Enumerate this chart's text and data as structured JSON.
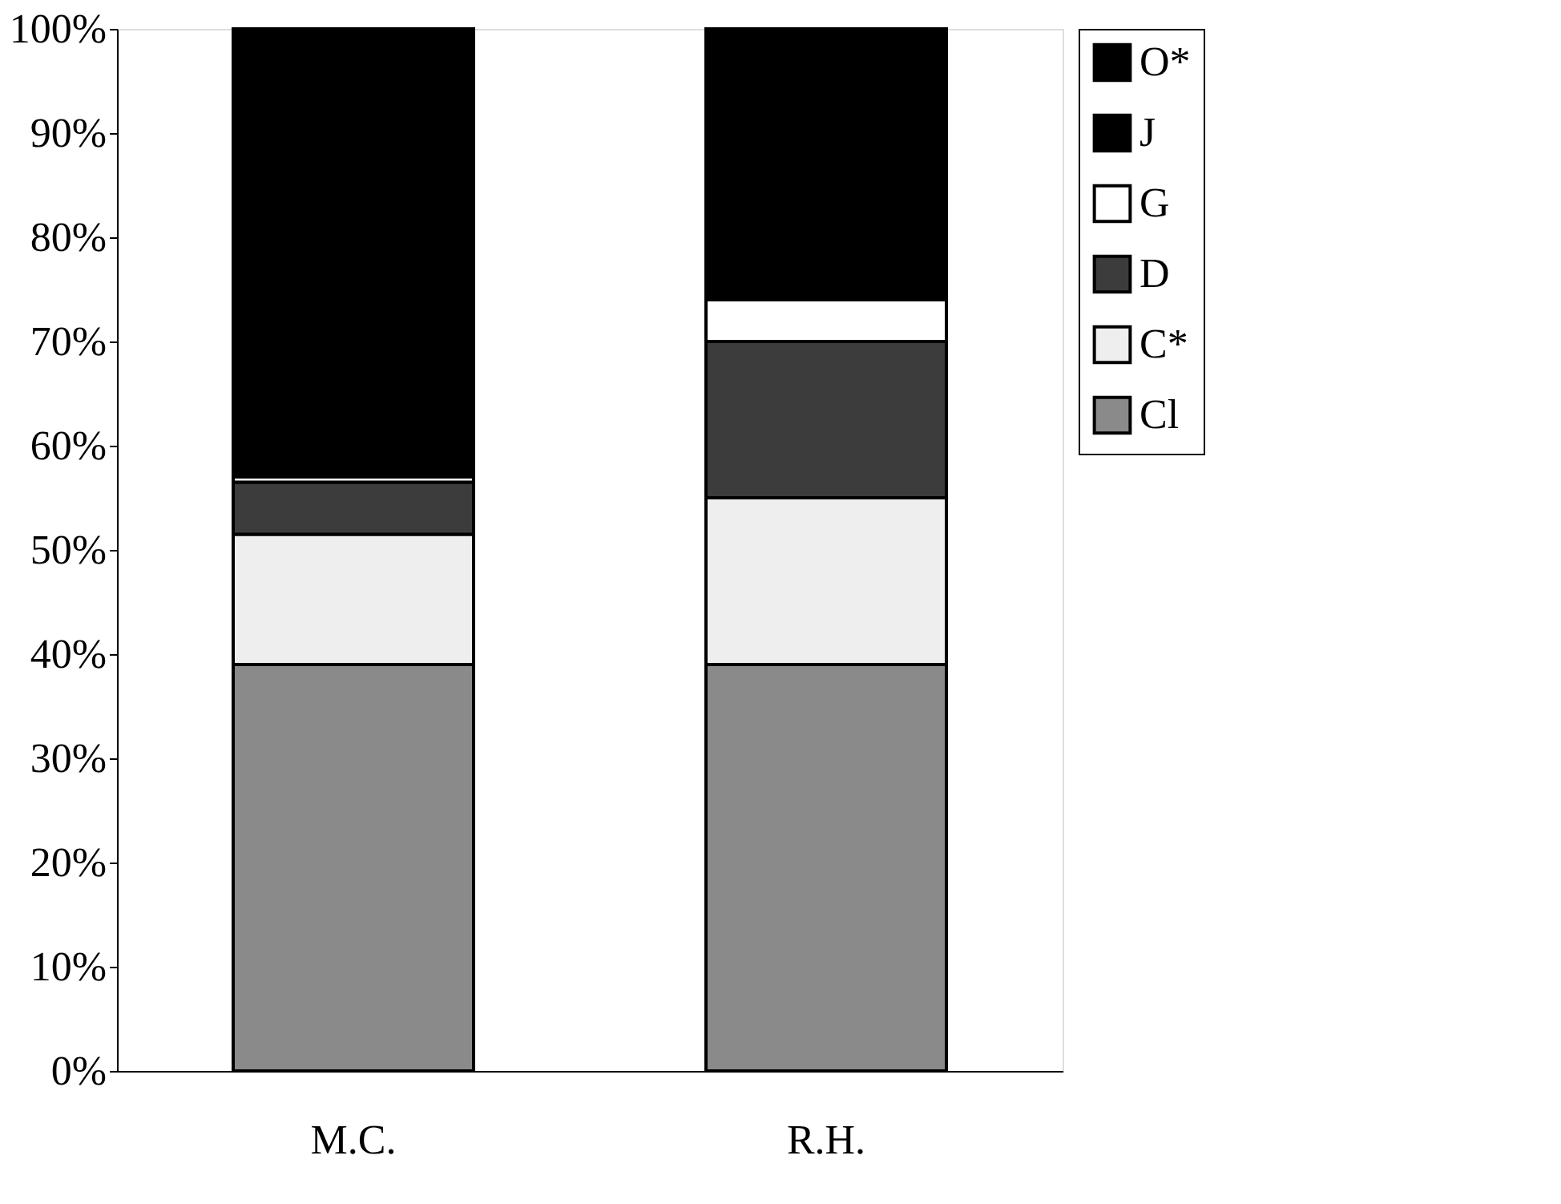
{
  "chart_data": {
    "type": "bar",
    "stacked": true,
    "categories": [
      "M.C.",
      "R.H."
    ],
    "series": [
      {
        "name": "Cl",
        "color": "#8a8a8a",
        "values": [
          39,
          39
        ]
      },
      {
        "name": "C*",
        "color": "#eeeeee",
        "values": [
          12.5,
          16
        ]
      },
      {
        "name": "D",
        "color": "#3c3c3c",
        "values": [
          5,
          15
        ]
      },
      {
        "name": "G",
        "color": "#ffffff",
        "values": [
          0.5,
          4
        ]
      },
      {
        "name": "J",
        "color": "#000000",
        "values": [
          0,
          0
        ]
      },
      {
        "name": "O*",
        "color": "#000000",
        "values": [
          43,
          26
        ]
      }
    ],
    "ylim": [
      0,
      100
    ],
    "yticks": [
      {
        "value": 0,
        "label": "0%"
      },
      {
        "value": 10,
        "label": "10%"
      },
      {
        "value": 20,
        "label": "20%"
      },
      {
        "value": 30,
        "label": "30%"
      },
      {
        "value": 40,
        "label": "40%"
      },
      {
        "value": 50,
        "label": "50%"
      },
      {
        "value": 60,
        "label": "60%"
      },
      {
        "value": 70,
        "label": "70%"
      },
      {
        "value": 80,
        "label": "80%"
      },
      {
        "value": 90,
        "label": "90%"
      },
      {
        "value": 100,
        "label": "100%"
      }
    ],
    "grid": false,
    "legend": "right"
  }
}
